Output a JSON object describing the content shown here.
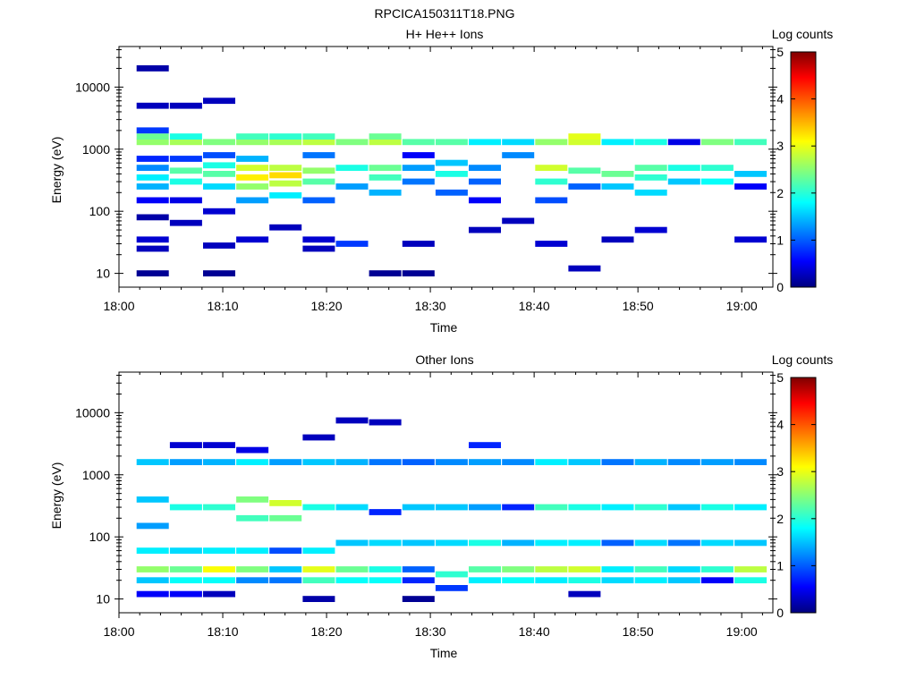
{
  "figure_title": "RPCICA150311T18.PNG",
  "panels": [
    {
      "title": "H+ He++ Ions",
      "xlabel": "Time",
      "ylabel": "Energy (eV)",
      "colorbar_label": "Log counts",
      "x_ticks": [
        "18:00",
        "18:10",
        "18:20",
        "18:30",
        "18:40",
        "18:50",
        "19:00"
      ],
      "y_ticks": [
        "10",
        "100",
        "1000",
        "10000"
      ],
      "cbar_ticks": [
        "0",
        "1",
        "2",
        "3",
        "4",
        "5"
      ]
    },
    {
      "title": "Other Ions",
      "xlabel": "Time",
      "ylabel": "Energy (eV)",
      "colorbar_label": "Log counts",
      "x_ticks": [
        "18:00",
        "18:10",
        "18:20",
        "18:30",
        "18:40",
        "18:50",
        "19:00"
      ],
      "y_ticks": [
        "10",
        "100",
        "1000",
        "10000"
      ],
      "cbar_ticks": [
        "0",
        "1",
        "2",
        "3",
        "4",
        "5"
      ]
    }
  ],
  "chart_data": [
    {
      "type": "heatmap",
      "title": "H+ He++ Ions",
      "xlabel": "Time",
      "ylabel": "Energy (eV)",
      "xlim_minutes_after_1800": [
        0,
        63
      ],
      "ylim_eV": [
        6,
        45000
      ],
      "y_scale": "log",
      "colorbar": {
        "label": "Log counts",
        "range": [
          0,
          5
        ],
        "colormap": "jet"
      },
      "time_bins_start_minutes": [
        1.7,
        4.9,
        8.1,
        11.3,
        14.5,
        17.7,
        20.9,
        24.1,
        27.3,
        30.5,
        33.7,
        36.9,
        40.1,
        43.3,
        46.5,
        49.7,
        52.9,
        56.1,
        59.3
      ],
      "cells": [
        [
          1.7,
          10,
          0.1
        ],
        [
          1.7,
          25,
          0.3
        ],
        [
          1.7,
          35,
          0.4
        ],
        [
          1.7,
          80,
          0.2
        ],
        [
          1.7,
          150,
          0.6
        ],
        [
          1.7,
          250,
          1.5
        ],
        [
          1.7,
          350,
          1.8
        ],
        [
          1.7,
          500,
          1.3
        ],
        [
          1.7,
          700,
          0.8
        ],
        [
          1.7,
          1300,
          2.6
        ],
        [
          1.7,
          1600,
          2.4
        ],
        [
          1.7,
          2000,
          0.9
        ],
        [
          1.7,
          5000,
          0.3
        ],
        [
          1.7,
          20000,
          0.2
        ],
        [
          4.9,
          65,
          0.3
        ],
        [
          4.9,
          150,
          0.5
        ],
        [
          4.9,
          300,
          2.0
        ],
        [
          4.9,
          450,
          2.3
        ],
        [
          4.9,
          700,
          0.9
        ],
        [
          4.9,
          1300,
          2.7
        ],
        [
          4.9,
          1600,
          2.0
        ],
        [
          4.9,
          5000,
          0.3
        ],
        [
          8.1,
          10,
          0.1
        ],
        [
          8.1,
          28,
          0.3
        ],
        [
          8.1,
          100,
          0.4
        ],
        [
          8.1,
          250,
          1.7
        ],
        [
          8.1,
          400,
          2.3
        ],
        [
          8.1,
          550,
          2.0
        ],
        [
          8.1,
          800,
          1.0
        ],
        [
          8.1,
          1300,
          2.5
        ],
        [
          8.1,
          6000,
          0.3
        ],
        [
          11.3,
          35,
          0.4
        ],
        [
          11.3,
          150,
          1.4
        ],
        [
          11.3,
          250,
          2.6
        ],
        [
          11.3,
          350,
          3.2
        ],
        [
          11.3,
          500,
          2.9
        ],
        [
          11.3,
          700,
          1.5
        ],
        [
          11.3,
          1300,
          2.6
        ],
        [
          11.3,
          1600,
          2.2
        ],
        [
          14.5,
          55,
          0.3
        ],
        [
          14.5,
          180,
          1.8
        ],
        [
          14.5,
          280,
          2.8
        ],
        [
          14.5,
          380,
          3.3
        ],
        [
          14.5,
          500,
          2.8
        ],
        [
          14.5,
          1300,
          2.7
        ],
        [
          14.5,
          1600,
          2.1
        ],
        [
          17.7,
          25,
          0.3
        ],
        [
          17.7,
          35,
          0.4
        ],
        [
          17.7,
          150,
          1.1
        ],
        [
          17.7,
          300,
          2.3
        ],
        [
          17.7,
          450,
          2.6
        ],
        [
          17.7,
          800,
          1.2
        ],
        [
          17.7,
          1300,
          2.8
        ],
        [
          17.7,
          1600,
          2.2
        ],
        [
          20.9,
          30,
          0.9
        ],
        [
          20.9,
          250,
          1.4
        ],
        [
          20.9,
          500,
          2.0
        ],
        [
          20.9,
          1300,
          2.5
        ],
        [
          24.1,
          10,
          0.1
        ],
        [
          24.1,
          200,
          1.5
        ],
        [
          24.1,
          350,
          2.2
        ],
        [
          24.1,
          500,
          2.4
        ],
        [
          24.1,
          1300,
          2.8
        ],
        [
          24.1,
          1600,
          2.4
        ],
        [
          27.3,
          10,
          0.1
        ],
        [
          27.3,
          30,
          0.3
        ],
        [
          27.3,
          300,
          1.2
        ],
        [
          27.3,
          500,
          1.4
        ],
        [
          27.3,
          800,
          0.6
        ],
        [
          27.3,
          1300,
          2.3
        ],
        [
          30.5,
          200,
          1.1
        ],
        [
          30.5,
          400,
          2.0
        ],
        [
          30.5,
          600,
          1.6
        ],
        [
          30.5,
          1300,
          2.3
        ],
        [
          33.7,
          50,
          0.3
        ],
        [
          33.7,
          150,
          0.6
        ],
        [
          33.7,
          300,
          1.1
        ],
        [
          33.7,
          500,
          1.3
        ],
        [
          33.7,
          1300,
          1.8
        ],
        [
          36.9,
          70,
          0.3
        ],
        [
          36.9,
          800,
          1.3
        ],
        [
          36.9,
          1300,
          1.7
        ],
        [
          40.1,
          30,
          0.4
        ],
        [
          40.1,
          150,
          1.0
        ],
        [
          40.1,
          300,
          2.1
        ],
        [
          40.1,
          500,
          2.9
        ],
        [
          40.1,
          1300,
          2.6
        ],
        [
          43.3,
          12,
          0.3
        ],
        [
          43.3,
          250,
          1.1
        ],
        [
          43.3,
          450,
          2.3
        ],
        [
          43.3,
          1300,
          2.9
        ],
        [
          43.3,
          1600,
          3.0
        ],
        [
          46.5,
          35,
          0.3
        ],
        [
          46.5,
          250,
          1.6
        ],
        [
          46.5,
          400,
          2.4
        ],
        [
          46.5,
          1300,
          1.8
        ],
        [
          49.7,
          50,
          0.4
        ],
        [
          49.7,
          200,
          1.7
        ],
        [
          49.7,
          350,
          2.1
        ],
        [
          49.7,
          500,
          2.3
        ],
        [
          49.7,
          1300,
          2.0
        ],
        [
          52.9,
          300,
          1.6
        ],
        [
          52.9,
          500,
          2.0
        ],
        [
          52.9,
          1300,
          0.5
        ],
        [
          56.1,
          300,
          1.9
        ],
        [
          56.1,
          500,
          2.1
        ],
        [
          56.1,
          1300,
          2.5
        ],
        [
          59.3,
          35,
          0.4
        ],
        [
          59.3,
          250,
          0.6
        ],
        [
          59.3,
          400,
          1.6
        ],
        [
          59.3,
          1300,
          2.2
        ]
      ]
    },
    {
      "type": "heatmap",
      "title": "Other Ions",
      "xlabel": "Time",
      "ylabel": "Energy (eV)",
      "xlim_minutes_after_1800": [
        0,
        63
      ],
      "ylim_eV": [
        6,
        45000
      ],
      "y_scale": "log",
      "colorbar": {
        "label": "Log counts",
        "range": [
          0,
          5
        ],
        "colormap": "jet"
      },
      "time_bins_start_minutes": [
        1.7,
        4.9,
        8.1,
        11.3,
        14.5,
        17.7,
        20.9,
        24.1,
        27.3,
        30.5,
        33.7,
        36.9,
        40.1,
        43.3,
        46.5,
        49.7,
        52.9,
        56.1,
        59.3
      ],
      "cells": [
        [
          1.7,
          12,
          0.6
        ],
        [
          1.7,
          20,
          1.6
        ],
        [
          1.7,
          30,
          2.6
        ],
        [
          1.7,
          60,
          1.8
        ],
        [
          1.7,
          150,
          1.4
        ],
        [
          1.7,
          400,
          1.6
        ],
        [
          1.7,
          1600,
          1.6
        ],
        [
          4.9,
          12,
          0.6
        ],
        [
          4.9,
          20,
          1.9
        ],
        [
          4.9,
          30,
          2.4
        ],
        [
          4.9,
          60,
          1.7
        ],
        [
          4.9,
          300,
          2.0
        ],
        [
          4.9,
          1600,
          1.4
        ],
        [
          4.9,
          3000,
          0.4
        ],
        [
          8.1,
          12,
          0.3
        ],
        [
          8.1,
          20,
          1.9
        ],
        [
          8.1,
          30,
          3.1
        ],
        [
          8.1,
          60,
          1.8
        ],
        [
          8.1,
          300,
          2.1
        ],
        [
          8.1,
          1600,
          1.5
        ],
        [
          8.1,
          3000,
          0.4
        ],
        [
          11.3,
          20,
          1.3
        ],
        [
          11.3,
          30,
          2.5
        ],
        [
          11.3,
          60,
          1.8
        ],
        [
          11.3,
          200,
          2.2
        ],
        [
          11.3,
          400,
          2.5
        ],
        [
          11.3,
          1600,
          1.8
        ],
        [
          11.3,
          2500,
          0.5
        ],
        [
          14.5,
          20,
          1.2
        ],
        [
          14.5,
          30,
          1.6
        ],
        [
          14.5,
          60,
          1.0
        ],
        [
          14.5,
          200,
          2.4
        ],
        [
          14.5,
          350,
          2.9
        ],
        [
          14.5,
          1600,
          1.4
        ],
        [
          17.7,
          10,
          0.2
        ],
        [
          17.7,
          20,
          2.2
        ],
        [
          17.7,
          30,
          3.0
        ],
        [
          17.7,
          60,
          1.8
        ],
        [
          17.7,
          300,
          2.0
        ],
        [
          17.7,
          1600,
          1.6
        ],
        [
          17.7,
          4000,
          0.3
        ],
        [
          20.9,
          20,
          1.9
        ],
        [
          20.9,
          30,
          2.4
        ],
        [
          20.9,
          80,
          1.6
        ],
        [
          20.9,
          300,
          1.7
        ],
        [
          20.9,
          1600,
          1.5
        ],
        [
          20.9,
          7500,
          0.3
        ],
        [
          24.1,
          20,
          1.9
        ],
        [
          24.1,
          30,
          2.0
        ],
        [
          24.1,
          80,
          1.7
        ],
        [
          24.1,
          250,
          0.8
        ],
        [
          24.1,
          1600,
          1.2
        ],
        [
          24.1,
          7000,
          0.3
        ],
        [
          27.3,
          10,
          0.1
        ],
        [
          27.3,
          20,
          0.8
        ],
        [
          27.3,
          30,
          1.1
        ],
        [
          27.3,
          80,
          1.6
        ],
        [
          27.3,
          300,
          1.6
        ],
        [
          27.3,
          1600,
          1.1
        ],
        [
          30.5,
          15,
          0.9
        ],
        [
          30.5,
          25,
          2.1
        ],
        [
          30.5,
          80,
          1.7
        ],
        [
          30.5,
          300,
          1.6
        ],
        [
          30.5,
          1600,
          1.3
        ],
        [
          33.7,
          20,
          1.8
        ],
        [
          33.7,
          30,
          2.3
        ],
        [
          33.7,
          80,
          2.0
        ],
        [
          33.7,
          300,
          1.4
        ],
        [
          33.7,
          1600,
          1.4
        ],
        [
          33.7,
          3000,
          0.8
        ],
        [
          36.9,
          20,
          1.9
        ],
        [
          36.9,
          30,
          2.5
        ],
        [
          36.9,
          80,
          1.5
        ],
        [
          36.9,
          300,
          0.8
        ],
        [
          36.9,
          1600,
          1.3
        ],
        [
          40.1,
          20,
          1.8
        ],
        [
          40.1,
          30,
          2.8
        ],
        [
          40.1,
          80,
          1.8
        ],
        [
          40.1,
          300,
          2.2
        ],
        [
          40.1,
          1600,
          1.8
        ],
        [
          43.3,
          12,
          0.3
        ],
        [
          43.3,
          20,
          2.0
        ],
        [
          43.3,
          30,
          2.9
        ],
        [
          43.3,
          80,
          1.8
        ],
        [
          43.3,
          300,
          2.0
        ],
        [
          43.3,
          1600,
          1.6
        ],
        [
          46.5,
          20,
          1.7
        ],
        [
          46.5,
          30,
          1.8
        ],
        [
          46.5,
          80,
          1.1
        ],
        [
          46.5,
          300,
          1.8
        ],
        [
          46.5,
          1600,
          1.2
        ],
        [
          49.7,
          20,
          1.8
        ],
        [
          49.7,
          30,
          2.2
        ],
        [
          49.7,
          80,
          1.7
        ],
        [
          49.7,
          300,
          2.1
        ],
        [
          49.7,
          1600,
          1.5
        ],
        [
          52.9,
          20,
          1.6
        ],
        [
          52.9,
          30,
          1.7
        ],
        [
          52.9,
          80,
          1.2
        ],
        [
          52.9,
          300,
          1.6
        ],
        [
          52.9,
          1600,
          1.3
        ],
        [
          56.1,
          20,
          0.6
        ],
        [
          56.1,
          30,
          2.1
        ],
        [
          56.1,
          80,
          1.7
        ],
        [
          56.1,
          300,
          2.0
        ],
        [
          56.1,
          1600,
          1.4
        ],
        [
          59.3,
          20,
          2.0
        ],
        [
          59.3,
          30,
          2.8
        ],
        [
          59.3,
          80,
          1.6
        ],
        [
          59.3,
          300,
          1.8
        ],
        [
          59.3,
          1600,
          1.3
        ]
      ]
    }
  ]
}
